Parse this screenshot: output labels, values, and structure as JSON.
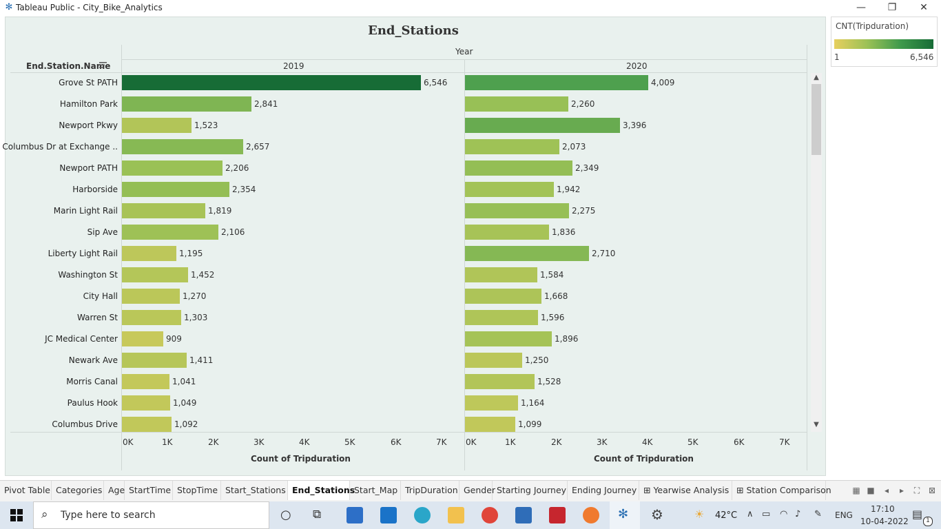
{
  "window": {
    "title": "Tableau Public - City_Bike_Analytics",
    "minimize": "—",
    "maximize": "❐",
    "close": "✕"
  },
  "sheet": {
    "title": "End_Stations",
    "row_header": "End.Station.Name",
    "column_group_label": "Year"
  },
  "legend": {
    "title": "CNT(Tripduration)",
    "min_label": "1",
    "max_label": "6,546",
    "colors": [
      "#e7cf5e",
      "#9bc156",
      "#3f9a4c",
      "#176c36"
    ]
  },
  "chart_data": {
    "type": "bar",
    "orientation": "horizontal",
    "categories": [
      "Grove St PATH",
      "Hamilton Park",
      "Newport Pkwy",
      "Columbus Dr at Exchange ..",
      "Newport PATH",
      "Harborside",
      "Marin Light Rail",
      "Sip Ave",
      "Liberty Light Rail",
      "Washington St",
      "City Hall",
      "Warren St",
      "JC Medical Center",
      "Newark Ave",
      "Morris Canal",
      "Paulus Hook",
      "Columbus Drive"
    ],
    "series": [
      {
        "name": "2019",
        "values": [
          6546,
          2841,
          1523,
          2657,
          2206,
          2354,
          1819,
          2106,
          1195,
          1452,
          1270,
          1303,
          909,
          1411,
          1041,
          1049,
          1092
        ],
        "labels": [
          "6,546",
          "2,841",
          "1,523",
          "2,657",
          "2,206",
          "2,354",
          "1,819",
          "2,106",
          "1,195",
          "1,452",
          "1,270",
          "1,303",
          "909",
          "1,411",
          "1,041",
          "1,049",
          "1,092"
        ]
      },
      {
        "name": "2020",
        "values": [
          4009,
          2260,
          3396,
          2073,
          2349,
          1942,
          2275,
          1836,
          2710,
          1584,
          1668,
          1596,
          1896,
          1250,
          1528,
          1164,
          1099
        ],
        "labels": [
          "4,009",
          "2,260",
          "3,396",
          "2,073",
          "2,349",
          "1,942",
          "2,275",
          "1,836",
          "2,710",
          "1,584",
          "1,668",
          "1,596",
          "1,896",
          "1,250",
          "1,528",
          "1,164",
          "1,099"
        ]
      }
    ],
    "xlim": [
      0,
      7000
    ],
    "x_ticks": [
      "0K",
      "1K",
      "2K",
      "3K",
      "4K",
      "5K",
      "6K",
      "7K"
    ],
    "xlabel": "Count of Tripduration",
    "color_range": [
      1,
      6546
    ],
    "grid": false
  },
  "tabs": [
    {
      "label": "Pivot Table",
      "active": false
    },
    {
      "label": "Categories",
      "active": false
    },
    {
      "label": "Age",
      "active": false
    },
    {
      "label": "StartTime",
      "active": false
    },
    {
      "label": "StopTime",
      "active": false
    },
    {
      "label": "Start_Stations",
      "active": false
    },
    {
      "label": "End_Stations",
      "active": true
    },
    {
      "label": "Start_Map",
      "active": false
    },
    {
      "label": "TripDuration",
      "active": false
    },
    {
      "label": "Gender",
      "active": false
    },
    {
      "label": "Starting Journey",
      "active": false
    },
    {
      "label": "Ending Journey",
      "active": false
    },
    {
      "label": "⊞ Yearwise Analysis",
      "active": false
    },
    {
      "label": "⊞ Station Comparison",
      "active": false
    }
  ],
  "taskbar": {
    "search_placeholder": "Type here to search",
    "weather": "42°C",
    "language": "ENG",
    "time": "17:10",
    "date": "10-04-2022",
    "notification_count": "1"
  }
}
